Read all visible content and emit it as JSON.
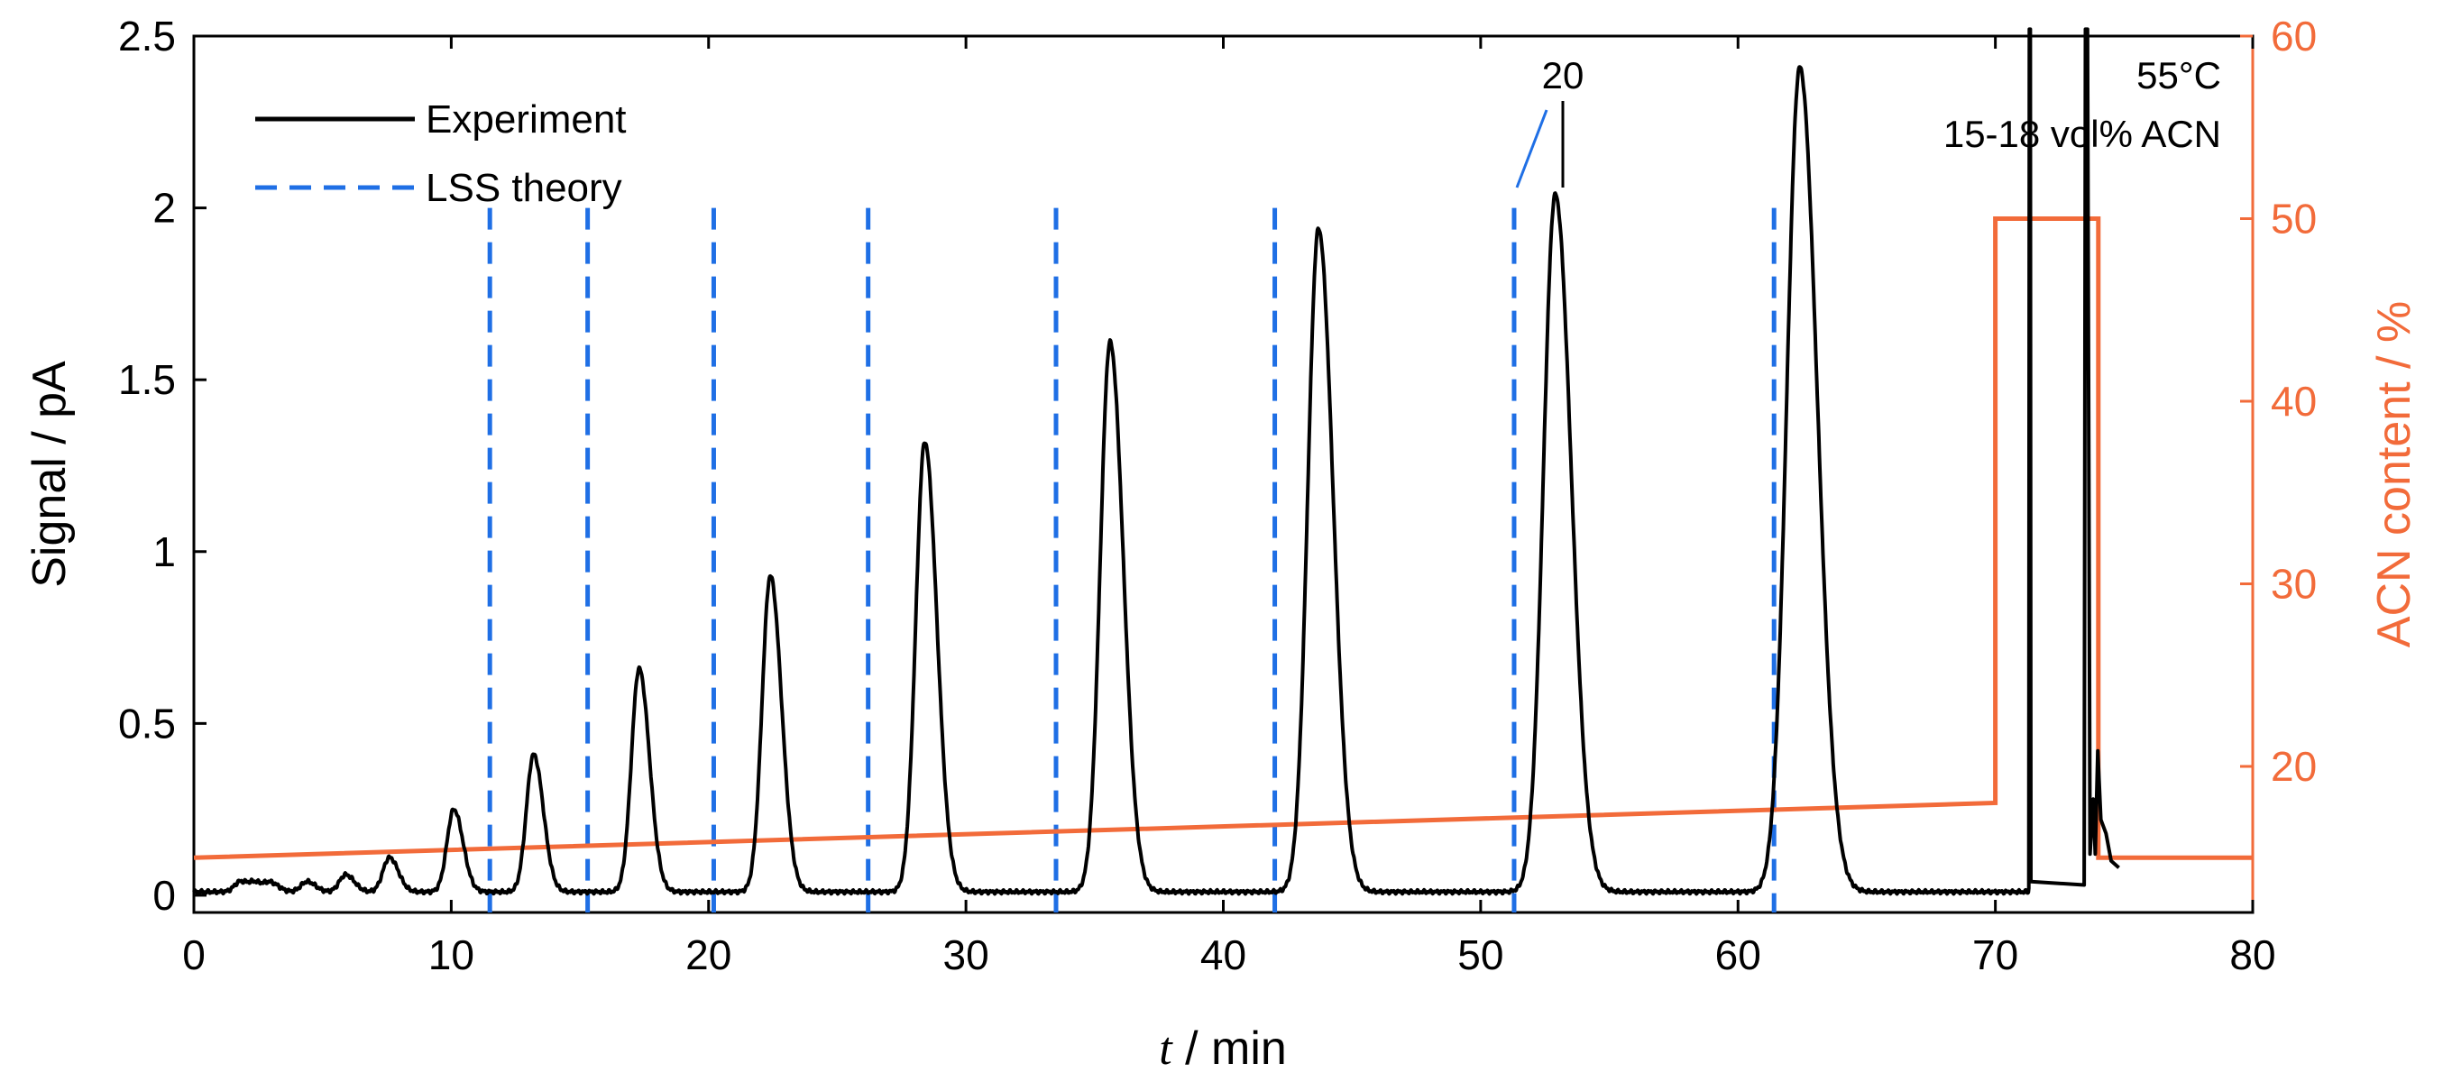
{
  "chart_data": {
    "type": "line",
    "xlabel": {
      "var": "t",
      "rest": " / min"
    },
    "ylabel": "Signal / pA",
    "y2label": "ACN content / %",
    "xlim": [
      0,
      80
    ],
    "ylim": [
      -0.05,
      2.5
    ],
    "y2lim": [
      12,
      60
    ],
    "x_ticks": [
      0,
      10,
      20,
      30,
      40,
      50,
      60,
      70,
      80
    ],
    "x_tick_labels": [
      "0",
      "10",
      "20",
      "30",
      "40",
      "50",
      "60",
      "70",
      "80"
    ],
    "y_ticks": [
      0,
      0.5,
      1,
      1.5,
      2,
      2.5
    ],
    "y_tick_labels": [
      "0",
      "0.5",
      "1",
      "1.5",
      "2",
      "2.5"
    ],
    "y2_ticks": [
      20,
      30,
      40,
      50,
      60
    ],
    "y2_tick_labels": [
      "20",
      "30",
      "40",
      "50",
      "60"
    ],
    "colors": {
      "experiment": "#000000",
      "theory": "#1f6fe5",
      "acn": "#f26b3a"
    },
    "legend": [
      {
        "label": "Experiment",
        "style": "solid"
      },
      {
        "label": "LSS theory",
        "style": "dashed"
      }
    ],
    "annotations": {
      "peak_label": "20",
      "condition_temp": "55°C",
      "condition_acn": "15-18 vol% ACN"
    },
    "experiment": {
      "baseline": 0.01,
      "peaks": [
        {
          "t": 1.8,
          "h": 0.03
        },
        {
          "t": 2.4,
          "h": 0.025
        },
        {
          "t": 3.0,
          "h": 0.025
        },
        {
          "t": 4.4,
          "h": 0.03
        },
        {
          "t": 5.9,
          "h": 0.05
        },
        {
          "t": 7.6,
          "h": 0.1
        },
        {
          "t": 10.1,
          "h": 0.24
        },
        {
          "t": 13.2,
          "h": 0.4
        },
        {
          "t": 17.3,
          "h": 0.65
        },
        {
          "t": 22.4,
          "h": 0.92
        },
        {
          "t": 28.4,
          "h": 1.31
        },
        {
          "t": 35.6,
          "h": 1.6
        },
        {
          "t": 43.7,
          "h": 1.93
        },
        {
          "t": 52.9,
          "h": 2.03
        },
        {
          "t": 62.4,
          "h": 2.4
        }
      ],
      "wash_start": 71.3,
      "wash_end": 73.5,
      "trace_end": 74.8
    },
    "lss_theory": {
      "retention_times": [
        11.5,
        15.3,
        20.2,
        26.2,
        33.5,
        42.0,
        51.3,
        61.4
      ]
    },
    "acn_program": {
      "t": [
        0,
        70,
        70,
        74,
        74,
        80
      ],
      "acn": [
        15.0,
        18.0,
        50.0,
        50.0,
        15.0,
        15.0
      ]
    }
  }
}
